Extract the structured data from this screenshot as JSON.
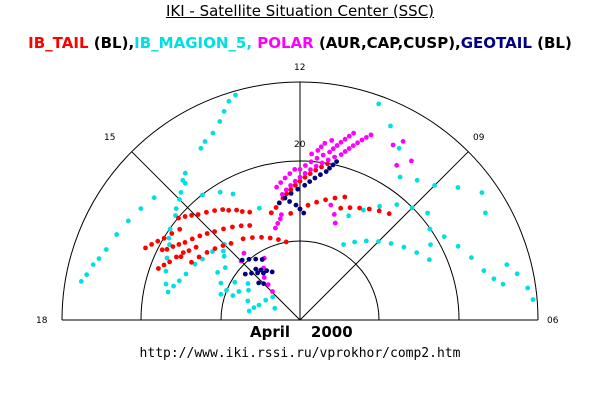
{
  "title": "IKI - Satellite Situation Center (SSC)",
  "legend": [
    {
      "label": "IB_TAIL",
      "color": "#ff0000"
    },
    {
      "label": " (BL),",
      "color": "#000000"
    },
    {
      "label": "IB_MAGION_5,",
      "color": "#00e0e0"
    },
    {
      "label": " POLAR",
      "color": "#ff00ff"
    },
    {
      "label": " (AUR,CAP,CUSP),",
      "color": "#000000"
    },
    {
      "label": "GEOTAIL",
      "color": "#000080"
    },
    {
      "label": " (BL)",
      "color": "#000000"
    }
  ],
  "footer": {
    "date": "April    2000",
    "url": "http://www.iki.rssi.ru/vprokhor/comp2.htm"
  },
  "chart_data": {
    "type": "scatter",
    "coordinate_system": "polar MLT/latitude half-dial",
    "angle_labels": [
      {
        "mlt": "18",
        "angle_deg": 180
      },
      {
        "mlt": "15",
        "angle_deg": 135
      },
      {
        "mlt": "12",
        "angle_deg": 90
      },
      {
        "mlt": "09",
        "angle_deg": 45
      },
      {
        "mlt": "06",
        "angle_deg": 0
      }
    ],
    "ring_values": [
      1,
      2,
      3
    ],
    "ring_label": "20",
    "series": [
      {
        "name": "IB_MAGION_5",
        "color": "#00e0e0",
        "points": [
          [
            0.35,
            155
          ],
          [
            0.45,
            140
          ],
          [
            0.5,
            150
          ],
          [
            0.55,
            160
          ],
          [
            0.6,
            165
          ],
          [
            0.65,
            170
          ],
          [
            0.7,
            160
          ],
          [
            0.75,
            150
          ],
          [
            0.8,
            145
          ],
          [
            0.85,
            155
          ],
          [
            0.9,
            160
          ],
          [
            0.95,
            150
          ],
          [
            1.0,
            158
          ],
          [
            1.05,
            162
          ],
          [
            1.1,
            155
          ],
          [
            1.15,
            145
          ],
          [
            1.2,
            150
          ],
          [
            1.25,
            140
          ],
          [
            1.3,
            138
          ],
          [
            1.35,
            135
          ],
          [
            1.4,
            142
          ],
          [
            1.45,
            148
          ],
          [
            1.5,
            152
          ],
          [
            1.55,
            158
          ],
          [
            1.6,
            162
          ],
          [
            1.65,
            165
          ],
          [
            1.7,
            168
          ],
          [
            1.75,
            165
          ],
          [
            1.8,
            160
          ],
          [
            1.85,
            155
          ],
          [
            1.9,
            150
          ],
          [
            1.95,
            148
          ],
          [
            2.0,
            145
          ],
          [
            2.05,
            140
          ],
          [
            2.1,
            138
          ],
          [
            2.15,
            135
          ],
          [
            2.2,
            133
          ],
          [
            2.25,
            130
          ],
          [
            2.3,
            130
          ],
          [
            2.35,
            128
          ],
          [
            2.4,
            140
          ],
          [
            2.45,
            145
          ],
          [
            2.5,
            150
          ],
          [
            2.55,
            155
          ],
          [
            2.6,
            160
          ],
          [
            2.65,
            163
          ],
          [
            2.7,
            165
          ],
          [
            2.75,
            168
          ],
          [
            2.8,
            170
          ],
          [
            2.5,
            120
          ],
          [
            2.55,
            118
          ],
          [
            2.6,
            115
          ],
          [
            2.7,
            112
          ],
          [
            2.8,
            110
          ],
          [
            2.9,
            108
          ],
          [
            2.95,
            106
          ],
          [
            1.1,
            60
          ],
          [
            1.2,
            55
          ],
          [
            1.3,
            50
          ],
          [
            1.4,
            45
          ],
          [
            1.5,
            40
          ],
          [
            1.6,
            35
          ],
          [
            1.7,
            30
          ],
          [
            1.3,
            70
          ],
          [
            1.45,
            65
          ],
          [
            1.6,
            60
          ],
          [
            1.75,
            55
          ],
          [
            1.9,
            50
          ],
          [
            2.0,
            45
          ],
          [
            2.1,
            40
          ],
          [
            1.8,
            25
          ],
          [
            1.9,
            30
          ],
          [
            2.0,
            35
          ],
          [
            2.1,
            30
          ],
          [
            2.2,
            25
          ],
          [
            2.3,
            20
          ],
          [
            2.4,
            15
          ],
          [
            2.5,
            12
          ],
          [
            2.6,
            10
          ],
          [
            2.7,
            15
          ],
          [
            2.8,
            12
          ],
          [
            2.9,
            8
          ],
          [
            2.95,
            5
          ],
          [
            2.7,
            30
          ],
          [
            2.8,
            35
          ],
          [
            2.6,
            40
          ],
          [
            2.4,
            45
          ],
          [
            2.3,
            50
          ],
          [
            2.2,
            55
          ],
          [
            2.5,
            60
          ],
          [
            2.7,
            65
          ],
          [
            2.9,
            70
          ],
          [
            1.6,
            120
          ],
          [
            1.7,
            125
          ],
          [
            1.8,
            118
          ],
          [
            1.9,
            122
          ],
          [
            2.0,
            128
          ],
          [
            1.5,
            110
          ],
          [
            1.4,
            105
          ]
        ]
      },
      {
        "name": "IB_TAIL",
        "color": "#ff0000",
        "points": [
          [
            1.35,
            118
          ],
          [
            1.4,
            122
          ],
          [
            1.45,
            126
          ],
          [
            1.5,
            130
          ],
          [
            1.55,
            134
          ],
          [
            1.6,
            137
          ],
          [
            1.65,
            140
          ],
          [
            1.7,
            143
          ],
          [
            1.75,
            146
          ],
          [
            1.8,
            148
          ],
          [
            1.85,
            150
          ],
          [
            1.9,
            152
          ],
          [
            1.95,
            153
          ],
          [
            1.4,
            105
          ],
          [
            1.45,
            102
          ],
          [
            1.5,
            100
          ],
          [
            1.55,
            98
          ],
          [
            1.6,
            96
          ],
          [
            1.65,
            94
          ],
          [
            1.7,
            92
          ],
          [
            1.5,
            115
          ],
          [
            1.55,
            118
          ],
          [
            1.6,
            120
          ],
          [
            1.65,
            123
          ],
          [
            1.7,
            125
          ],
          [
            1.75,
            128
          ],
          [
            1.8,
            131
          ],
          [
            1.85,
            134
          ],
          [
            1.9,
            136
          ],
          [
            1.95,
            138
          ],
          [
            2.0,
            140
          ],
          [
            1.9,
            143
          ],
          [
            1.95,
            146
          ],
          [
            2.0,
            149
          ],
          [
            2.05,
            151
          ],
          [
            2.1,
            153
          ],
          [
            2.15,
            155
          ],
          [
            1.7,
            150
          ],
          [
            1.75,
            153
          ],
          [
            1.8,
            156
          ],
          [
            1.85,
            158
          ],
          [
            1.9,
            160
          ],
          [
            1.6,
            145
          ],
          [
            1.65,
            148
          ],
          [
            1.7,
            152
          ],
          [
            1.35,
            95
          ],
          [
            1.4,
            90
          ],
          [
            1.45,
            86
          ],
          [
            1.5,
            82
          ],
          [
            1.55,
            78
          ],
          [
            1.6,
            74
          ],
          [
            1.65,
            70
          ],
          [
            1.5,
            70
          ],
          [
            1.55,
            66
          ],
          [
            1.6,
            62
          ],
          [
            1.65,
            58
          ],
          [
            1.7,
            54
          ],
          [
            1.75,
            50
          ],
          [
            1.7,
            92
          ],
          [
            1.75,
            90
          ],
          [
            1.8,
            88
          ],
          [
            1.85,
            86
          ],
          [
            1.9,
            84
          ],
          [
            1.95,
            82
          ],
          [
            2.0,
            80
          ],
          [
            1.3,
            132
          ],
          [
            1.35,
            136
          ],
          [
            1.4,
            140
          ],
          [
            1.45,
            144
          ],
          [
            1.5,
            148
          ],
          [
            1.55,
            152
          ],
          [
            1.0,
            100
          ],
          [
            1.05,
            105
          ],
          [
            1.1,
            110
          ],
          [
            1.15,
            115
          ],
          [
            1.2,
            120
          ],
          [
            1.25,
            125
          ]
        ]
      },
      {
        "name": "POLAR",
        "color": "#ff00ff",
        "points": [
          [
            1.6,
            98
          ],
          [
            1.65,
            96
          ],
          [
            1.7,
            94
          ],
          [
            1.75,
            92
          ],
          [
            1.8,
            90
          ],
          [
            1.85,
            88
          ],
          [
            1.9,
            86
          ],
          [
            1.95,
            84
          ],
          [
            2.0,
            82
          ],
          [
            2.05,
            80
          ],
          [
            2.1,
            78
          ],
          [
            2.15,
            76
          ],
          [
            2.2,
            75
          ],
          [
            2.25,
            74
          ],
          [
            2.3,
            73
          ],
          [
            2.35,
            72
          ],
          [
            2.4,
            71
          ],
          [
            2.45,
            70
          ],
          [
            2.5,
            69
          ],
          [
            1.9,
            90
          ],
          [
            1.95,
            88
          ],
          [
            2.0,
            86
          ],
          [
            2.05,
            84
          ],
          [
            2.1,
            82
          ],
          [
            2.15,
            80
          ],
          [
            2.2,
            79
          ],
          [
            2.25,
            78
          ],
          [
            2.3,
            77
          ],
          [
            2.35,
            76
          ],
          [
            2.4,
            75
          ],
          [
            2.45,
            74
          ],
          [
            1.7,
            100
          ],
          [
            1.75,
            98
          ],
          [
            1.8,
            96
          ],
          [
            1.85,
            94
          ],
          [
            1.9,
            92
          ],
          [
            2.1,
            86
          ],
          [
            2.15,
            84
          ],
          [
            2.2,
            83
          ],
          [
            2.25,
            82
          ],
          [
            2.3,
            80
          ],
          [
            1.2,
            105
          ],
          [
            1.25,
            103
          ],
          [
            1.3,
            101
          ],
          [
            1.35,
            100
          ],
          [
            0.9,
            120
          ],
          [
            0.8,
            125
          ],
          [
            0.7,
            130
          ],
          [
            0.6,
            132
          ],
          [
            0.5,
            134
          ],
          [
            1.5,
            75
          ],
          [
            1.4,
            72
          ],
          [
            1.3,
            70
          ],
          [
            2.5,
            62
          ],
          [
            2.6,
            60
          ],
          [
            2.45,
            55
          ],
          [
            2.3,
            58
          ],
          [
            1.1,
            130
          ],
          [
            1.05,
            135
          ]
        ]
      },
      {
        "name": "GEOTAIL",
        "color": "#000080",
        "points": [
          [
            1.5,
            100
          ],
          [
            1.55,
            97
          ],
          [
            1.6,
            94
          ],
          [
            1.65,
            91
          ],
          [
            1.7,
            88
          ],
          [
            1.75,
            86
          ],
          [
            1.8,
            84
          ],
          [
            1.85,
            82
          ],
          [
            1.9,
            80
          ],
          [
            1.95,
            79
          ],
          [
            2.0,
            78
          ],
          [
            2.05,
            77
          ],
          [
            1.5,
            95
          ],
          [
            1.45,
            92
          ],
          [
            1.4,
            90
          ],
          [
            1.35,
            88
          ],
          [
            0.75,
            128
          ],
          [
            0.8,
            132
          ],
          [
            0.85,
            136
          ],
          [
            0.9,
            140
          ],
          [
            0.9,
            122
          ],
          [
            0.95,
            126
          ],
          [
            1.0,
            130
          ],
          [
            1.05,
            134
          ],
          [
            0.7,
            120
          ],
          [
            0.75,
            124
          ],
          [
            0.8,
            128
          ],
          [
            0.85,
            131
          ],
          [
            0.65,
            135
          ],
          [
            0.7,
            138
          ]
        ]
      }
    ]
  }
}
